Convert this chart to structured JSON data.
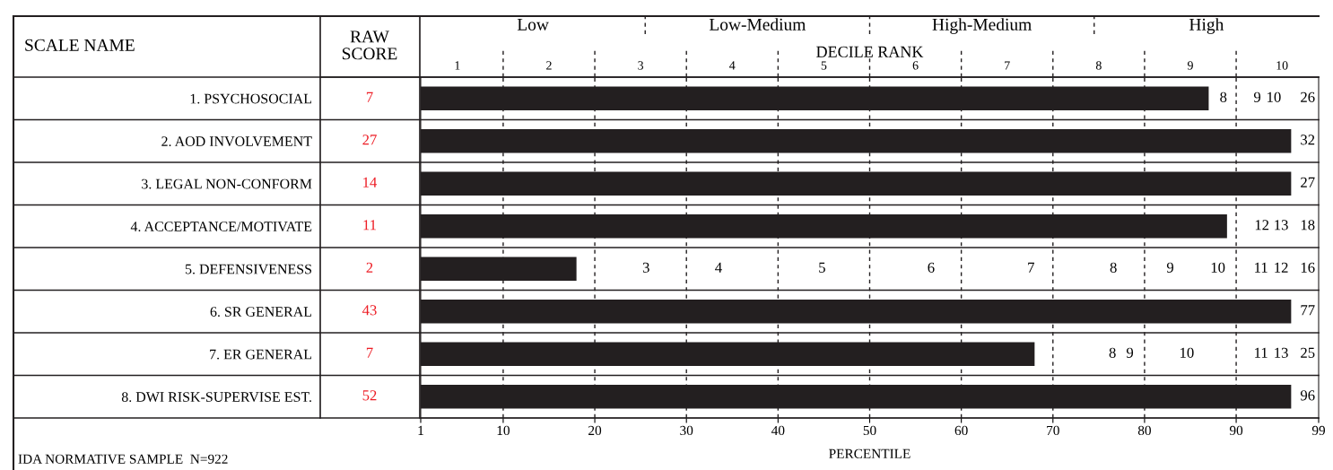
{
  "chart_data": {
    "type": "bar",
    "orientation": "horizontal",
    "categories": [
      "1. PSYCHOSOCIAL",
      "2. AOD INVOLVEMENT",
      "3. LEGAL NON-CONFORM",
      "4. ACCEPTANCE/MOTIVATE",
      "5. DEFENSIVENESS",
      "6. SR GENERAL",
      "7. ER GENERAL",
      "8. DWI RISK-SUPERVISE EST."
    ],
    "values": [
      87,
      96,
      96,
      89,
      18,
      96,
      68,
      96
    ],
    "color": "#231f20",
    "xlim": [
      1,
      99
    ],
    "xticks": [
      1,
      10,
      20,
      30,
      40,
      50,
      60,
      70,
      80,
      90,
      99
    ],
    "x2lim": [
      0.6,
      10.4
    ],
    "x2ticks": [
      1,
      2,
      3,
      4,
      5,
      6,
      7,
      8,
      9,
      10
    ],
    "x2label": "DECILE RANK",
    "xlabel": "PERCENTILE",
    "grid": "x",
    "annotations": [
      "SCALE NAME",
      "RAW\nSCORE",
      "Low",
      "Low-Medium",
      "High-Medium",
      "High",
      "IDA NORMATIVE SAMPLE  N=922",
      "7",
      "27",
      "14",
      "11",
      "2",
      "43",
      "7",
      "52",
      "8",
      "9",
      "10",
      "26",
      "32",
      "27",
      "12",
      "13",
      "18",
      "3",
      "4",
      "5",
      "6",
      "7",
      "8",
      "9",
      "10",
      "11",
      "12",
      "16",
      "77",
      "8",
      "9",
      "10",
      "11",
      "13",
      "25",
      "96"
    ]
  }
}
